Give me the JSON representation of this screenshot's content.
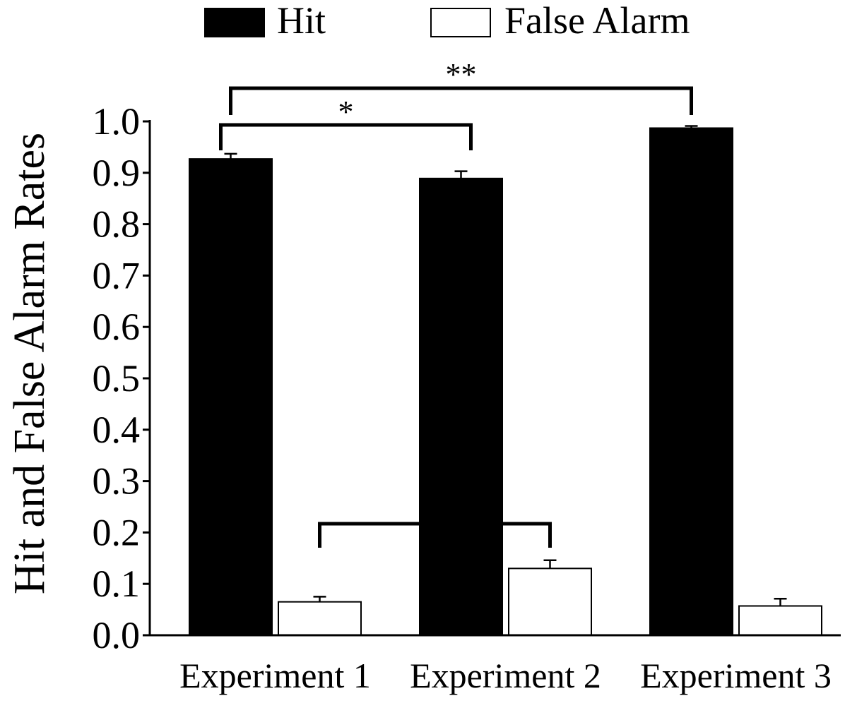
{
  "chart_data": {
    "type": "bar",
    "ylabel": "Hit and False Alarm Rates",
    "ylim": [
      0.0,
      1.0
    ],
    "yticks": [
      "0.0",
      "0.1",
      "0.2",
      "0.3",
      "0.4",
      "0.5",
      "0.6",
      "0.7",
      "0.8",
      "0.9",
      "1.0"
    ],
    "categories": [
      "Experiment 1",
      "Experiment 2",
      "Experiment 3"
    ],
    "legend_placement": "top",
    "series": [
      {
        "name": "Hit",
        "color": "#000000",
        "values": [
          0.927,
          0.889,
          0.987
        ],
        "errors": [
          0.01,
          0.014,
          0.004
        ]
      },
      {
        "name": "False Alarm",
        "color": "#ffffff",
        "values": [
          0.065,
          0.13,
          0.057
        ],
        "errors": [
          0.01,
          0.016,
          0.014
        ]
      }
    ],
    "annotations": [
      {
        "label": "**",
        "from": {
          "category": 0,
          "series": 0
        },
        "to": {
          "category": 2,
          "series": 0
        }
      },
      {
        "label": "*",
        "from": {
          "category": 0,
          "series": 0
        },
        "to": {
          "category": 1,
          "series": 0
        }
      },
      {
        "label": "**",
        "from": {
          "category": 0,
          "series": 1
        },
        "to": {
          "category": 1,
          "series": 1
        }
      }
    ]
  }
}
